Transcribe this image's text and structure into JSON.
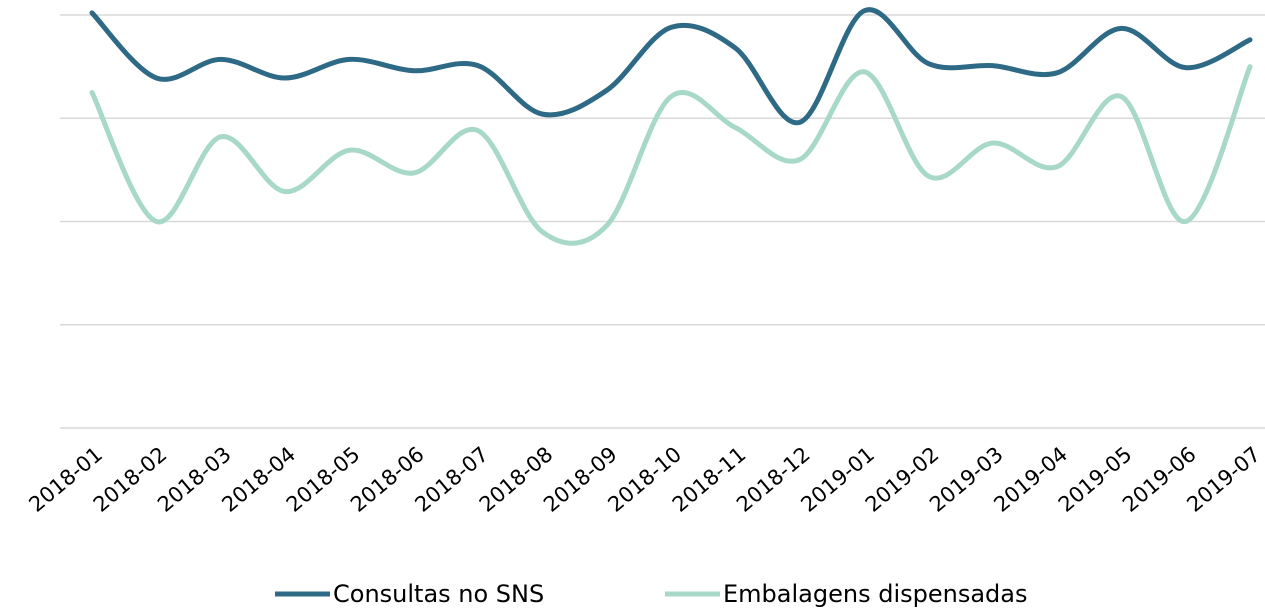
{
  "chart_data": {
    "type": "line",
    "categories": [
      "2018-01",
      "2018-02",
      "2018-03",
      "2018-04",
      "2018-05",
      "2018-06",
      "2018-07",
      "2018-08",
      "2018-09",
      "2018-10",
      "2018-11",
      "2018-12",
      "2019-01",
      "2019-02",
      "2019-03",
      "2019-04",
      "2019-05",
      "2019-06",
      "2019-07"
    ],
    "series": [
      {
        "name": "Consultas no SNS",
        "color": "#2e6a86",
        "values": [
          4.02,
          3.39,
          3.57,
          3.39,
          3.57,
          3.46,
          3.51,
          3.04,
          3.27,
          3.88,
          3.68,
          2.96,
          4.04,
          3.53,
          3.51,
          3.44,
          3.87,
          3.49,
          3.76
        ]
      },
      {
        "name": "Embalagens dispensadas",
        "color": "#a8d8c8",
        "values": [
          3.25,
          2.0,
          2.82,
          2.29,
          2.69,
          2.47,
          2.88,
          1.9,
          1.96,
          3.21,
          2.91,
          2.6,
          3.45,
          2.44,
          2.76,
          2.53,
          3.21,
          2.0,
          3.5
        ]
      }
    ],
    "ylim": [
      0,
      4
    ],
    "yticks": [
      0,
      1,
      2,
      3,
      4
    ],
    "grid": true,
    "legend": "bottom"
  }
}
